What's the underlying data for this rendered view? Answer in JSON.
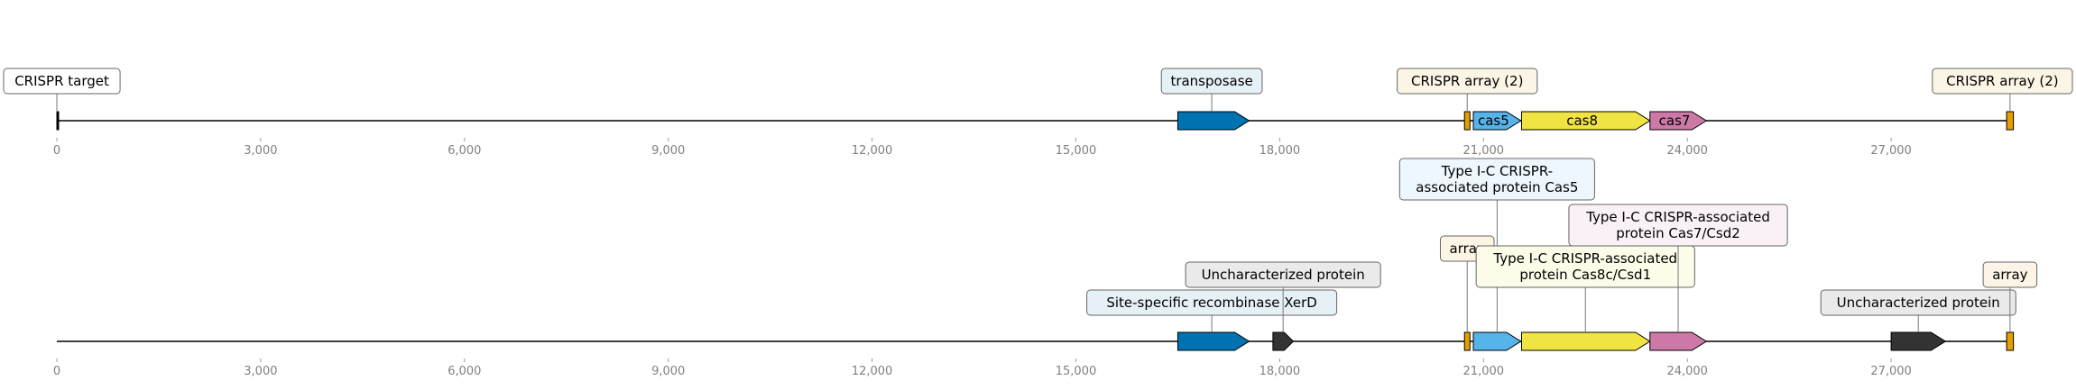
{
  "axis": {
    "min": 0,
    "max": 29000,
    "ticks": [
      {
        "value": 0,
        "label": "0"
      },
      {
        "value": 3000,
        "label": "3,000"
      },
      {
        "value": 6000,
        "label": "6,000"
      },
      {
        "value": 9000,
        "label": "9,000"
      },
      {
        "value": 12000,
        "label": "12,000"
      },
      {
        "value": 15000,
        "label": "15,000"
      },
      {
        "value": 18000,
        "label": "18,000"
      },
      {
        "value": 21000,
        "label": "21,000"
      },
      {
        "value": 24000,
        "label": "24,000"
      },
      {
        "value": 27000,
        "label": "27,000"
      }
    ]
  },
  "tracks": [
    {
      "id": "top",
      "end": 28800,
      "features": [
        {
          "name": "crispr-target",
          "start": 0,
          "end": 20,
          "strand": 0,
          "color": "#000000",
          "inner_label": ""
        },
        {
          "name": "transposase",
          "start": 16500,
          "end": 17550,
          "strand": 1,
          "color": "#0072b2",
          "inner_label": ""
        },
        {
          "name": "crispr-array",
          "start": 20720,
          "end": 20800,
          "strand": 0,
          "color": "#e69f00",
          "inner_label": ""
        },
        {
          "name": "cas5",
          "start": 20850,
          "end": 21550,
          "strand": 1,
          "color": "#56b4e9",
          "inner_label": "cas5"
        },
        {
          "name": "cas8",
          "start": 21560,
          "end": 23450,
          "strand": 1,
          "color": "#f0e442",
          "inner_label": "cas8"
        },
        {
          "name": "cas7",
          "start": 23450,
          "end": 24280,
          "strand": 1,
          "color": "#cc79a7",
          "inner_label": "cas7"
        },
        {
          "name": "crispr-array-2",
          "start": 28700,
          "end": 28800,
          "strand": 0,
          "color": "#e69f00",
          "inner_label": ""
        }
      ],
      "labels": [
        {
          "name": "crispr-target",
          "lines": [
            "CRISPR target"
          ],
          "anchor": 0,
          "level": 0,
          "bg": "#ffffff"
        },
        {
          "name": "transposase",
          "lines": [
            "transposase"
          ],
          "anchor": 17000,
          "level": 0,
          "bg": "#e6f1f7"
        },
        {
          "name": "crispr-array",
          "lines": [
            "CRISPR array (2)"
          ],
          "anchor": 20760,
          "level": 0,
          "bg": "#fcf5e5"
        },
        {
          "name": "crispr-array-2",
          "lines": [
            "CRISPR array (2)"
          ],
          "anchor": 28750,
          "level": 0,
          "bg": "#fcf5e5"
        }
      ]
    },
    {
      "id": "bottom",
      "end": 28800,
      "features": [
        {
          "name": "xerd",
          "start": 16500,
          "end": 17550,
          "strand": 1,
          "color": "#0072b2",
          "inner_label": ""
        },
        {
          "name": "uncharacterized-1",
          "start": 17900,
          "end": 18200,
          "strand": 1,
          "color": "#333333",
          "inner_label": ""
        },
        {
          "name": "array-1",
          "start": 20720,
          "end": 20800,
          "strand": 0,
          "color": "#e69f00",
          "inner_label": ""
        },
        {
          "name": "cas5",
          "start": 20850,
          "end": 21550,
          "strand": 1,
          "color": "#56b4e9",
          "inner_label": ""
        },
        {
          "name": "cas8c",
          "start": 21560,
          "end": 23450,
          "strand": 1,
          "color": "#f0e442",
          "inner_label": ""
        },
        {
          "name": "cas7",
          "start": 23450,
          "end": 24280,
          "strand": 1,
          "color": "#cc79a7",
          "inner_label": ""
        },
        {
          "name": "uncharacterized-2",
          "start": 27000,
          "end": 27800,
          "strand": 1,
          "color": "#333333",
          "inner_label": ""
        },
        {
          "name": "array-2",
          "start": 28700,
          "end": 28800,
          "strand": 0,
          "color": "#e69f00",
          "inner_label": ""
        }
      ],
      "labels": [
        {
          "name": "xerd",
          "lines": [
            "Site-specific recombinase XerD"
          ],
          "anchor": 17000,
          "level": 0,
          "bg": "#e6f1f7"
        },
        {
          "name": "uncharacterized-1",
          "lines": [
            "Uncharacterized protein"
          ],
          "anchor": 18050,
          "level": 1,
          "bg": "#eaeaea"
        },
        {
          "name": "array-1",
          "lines": [
            "array"
          ],
          "anchor": 20760,
          "level": 2,
          "bg": "#fcf5e5"
        },
        {
          "name": "cas5",
          "lines": [
            "Type I-C CRISPR-",
            "associated protein Cas5"
          ],
          "anchor": 21200,
          "level": 4,
          "bg": "#eef7fd"
        },
        {
          "name": "cas8c",
          "lines": [
            "Type I-C CRISPR-associated",
            "protein Cas8c/Csd1"
          ],
          "anchor": 22500,
          "level": 1,
          "bg": "#fdfce8"
        },
        {
          "name": "cas7",
          "lines": [
            "Type I-C CRISPR-associated",
            "protein Cas7/Csd2"
          ],
          "anchor": 23865,
          "level": 3,
          "bg": "#f9f1f6"
        },
        {
          "name": "uncharacterized-2",
          "lines": [
            "Uncharacterized protein"
          ],
          "anchor": 27400,
          "level": 0,
          "bg": "#eaeaea"
        },
        {
          "name": "array-2",
          "lines": [
            "array"
          ],
          "anchor": 28750,
          "level": 1,
          "bg": "#fcf5e5"
        }
      ]
    }
  ]
}
